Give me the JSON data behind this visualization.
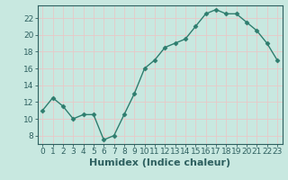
{
  "x": [
    0,
    1,
    2,
    3,
    4,
    5,
    6,
    7,
    8,
    9,
    10,
    11,
    12,
    13,
    14,
    15,
    16,
    17,
    18,
    19,
    20,
    21,
    22,
    23
  ],
  "y": [
    11,
    12.5,
    11.5,
    10,
    10.5,
    10.5,
    7.5,
    8,
    10.5,
    13,
    16,
    17,
    18.5,
    19,
    19.5,
    21,
    22.5,
    23,
    22.5,
    22.5,
    21.5,
    20.5,
    19,
    17
  ],
  "xlabel": "Humidex (Indice chaleur)",
  "ylabel": "",
  "xlim": [
    -0.5,
    23.5
  ],
  "ylim": [
    7,
    23.5
  ],
  "yticks": [
    8,
    10,
    12,
    14,
    16,
    18,
    20,
    22
  ],
  "xticks": [
    0,
    1,
    2,
    3,
    4,
    5,
    6,
    7,
    8,
    9,
    10,
    11,
    12,
    13,
    14,
    15,
    16,
    17,
    18,
    19,
    20,
    21,
    22,
    23
  ],
  "line_color": "#2e7d6e",
  "marker_color": "#2e7d6e",
  "bg_color": "#c8e8e0",
  "grid_color": "#e8c8c8",
  "axes_color": "#2e6060",
  "tick_label_color": "#2e6060",
  "xlabel_color": "#2e6060",
  "xlabel_fontsize": 8,
  "tick_fontsize": 6.5
}
